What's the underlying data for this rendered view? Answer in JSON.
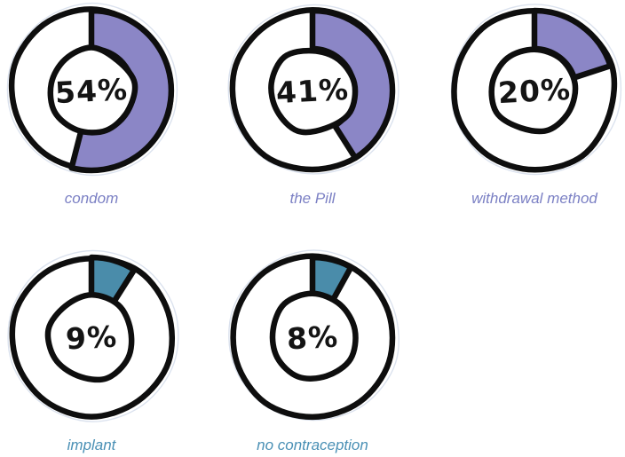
{
  "chart_data": {
    "type": "pie",
    "subtype": "donut-small-multiples",
    "title": "",
    "unit": "%",
    "categories": [
      "condom",
      "the Pill",
      "withdrawal method",
      "implant",
      "no contraception"
    ],
    "values": [
      54,
      41,
      20,
      9,
      8
    ],
    "value_labels": [
      "54%",
      "41%",
      "20%",
      "9%",
      "8%"
    ],
    "segment_colors": [
      "#8b86c6",
      "#8b86c6",
      "#8b86c6",
      "#4a8caa",
      "#4a8caa"
    ],
    "caption_colors": [
      "#7b80c4",
      "#7b80c4",
      "#7b80c4",
      "#4a90b5",
      "#4a90b5"
    ],
    "segment_start": "12-oclock-clockwise",
    "legend_position": "below-each",
    "grid": false
  },
  "charts": [
    {
      "label": "condom",
      "value": 54,
      "value_text": "54%",
      "fill": "#8b86c6",
      "label_color": "#7b80c4"
    },
    {
      "label": "the Pill",
      "value": 41,
      "value_text": "41%",
      "fill": "#8b86c6",
      "label_color": "#7b80c4"
    },
    {
      "label": "withdrawal method",
      "value": 20,
      "value_text": "20%",
      "fill": "#8b86c6",
      "label_color": "#7b80c4"
    },
    {
      "label": "implant",
      "value": 9,
      "value_text": "9%",
      "fill": "#4a8caa",
      "label_color": "#4a90b5"
    },
    {
      "label": "no contraception",
      "value": 8,
      "value_text": "8%",
      "fill": "#4a8caa",
      "label_color": "#4a90b5"
    }
  ],
  "style": {
    "outline": "#0e0e0e",
    "halo": "#dbe2ee",
    "hole_fill": "#ffffff",
    "background": "#ffffff",
    "percent_text_color": "#141414"
  }
}
